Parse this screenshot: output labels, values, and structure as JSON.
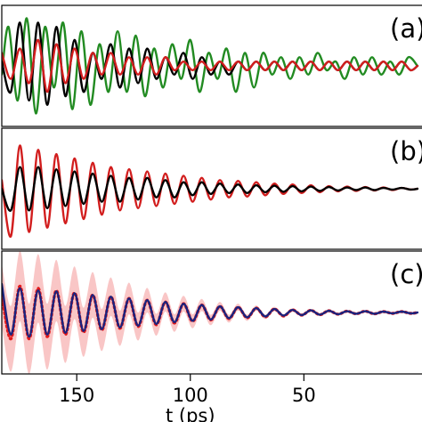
{
  "chart_data": {
    "type": "line",
    "xlabel": "t (ps)",
    "xlim": [
      183,
      -2
    ],
    "x_ticks": [
      150,
      100,
      50
    ],
    "x_tick_labels": [
      "150",
      "100",
      "50"
    ],
    "panels": [
      {
        "label": "(a)",
        "ylim": [
          -1.4,
          1.4
        ],
        "series": [
          {
            "color": "#228b22",
            "x": [
              183,
              180,
              176,
              172,
              168,
              164,
              160,
              156,
              152,
              148,
              144,
              140,
              136,
              132,
              128,
              124,
              120,
              116,
              112,
              108,
              104,
              100,
              96,
              92,
              88,
              84,
              80,
              76,
              72,
              68,
              64,
              60,
              56,
              52,
              48,
              44,
              40,
              36,
              32,
              28,
              24,
              20,
              16,
              12,
              8,
              4,
              0
            ],
            "y": [
              -0.2,
              0.9,
              -0.8,
              1.1,
              -1.1,
              0.9,
              -0.5,
              1.0,
              -1.0,
              0.8,
              -0.9,
              0.5,
              -0.6,
              0.8,
              -0.6,
              0.7,
              -0.7,
              0.4,
              -0.5,
              0.5,
              -0.3,
              0.6,
              -0.6,
              0.3,
              -0.3,
              0.4,
              -0.6,
              0.3,
              -0.5,
              0.3,
              -0.2,
              0.2,
              -0.3,
              0.2,
              -0.2,
              0.3,
              -0.1,
              0.1,
              -0.3,
              0.2,
              -0.2,
              0.2,
              -0.2,
              0.1,
              -0.2,
              0.2,
              0.0
            ]
          },
          {
            "color": "#000000",
            "x": [
              183,
              179,
              175,
              171,
              167,
              163,
              159,
              155,
              151,
              147,
              143,
              139,
              135,
              131,
              127,
              123,
              119,
              115,
              111,
              107,
              103,
              99,
              95,
              91,
              87,
              83,
              79,
              75,
              71,
              67,
              63,
              59,
              55,
              51,
              47,
              43,
              39,
              35,
              31,
              27,
              23,
              19,
              15,
              11,
              7,
              3,
              0
            ],
            "y": [
              0.1,
              -0.6,
              1.0,
              -0.8,
              1.0,
              -0.9,
              0.9,
              -0.7,
              0.6,
              -0.6,
              0.3,
              -0.3,
              0.5,
              -0.5,
              0.4,
              -0.4,
              0.4,
              -0.3,
              0.2,
              -0.2,
              0.3,
              -0.3,
              0.2,
              -0.2,
              0.1,
              -0.2,
              0.1,
              -0.1,
              0.1,
              -0.1,
              0.1,
              -0.1,
              0.1,
              -0.1,
              0.1,
              -0.1,
              0.1,
              -0.1,
              0.1,
              -0.1,
              0.1,
              -0.1,
              0.1,
              -0.1,
              0.1,
              -0.1,
              0.0
            ]
          },
          {
            "color": "#d21e1e",
            "x": [
              183,
              179,
              175,
              171,
              167,
              163,
              159,
              155,
              151,
              147,
              143,
              139,
              135,
              131,
              127,
              123,
              119,
              115,
              111,
              107,
              103,
              99,
              95,
              91,
              87,
              83,
              79,
              75,
              71,
              67,
              63,
              59,
              55,
              51,
              47,
              43,
              39,
              35,
              31,
              27,
              23,
              19,
              15,
              11,
              7,
              3,
              0
            ],
            "y": [
              0.3,
              -0.3,
              0.4,
              -0.4,
              0.6,
              -0.6,
              0.5,
              -0.4,
              0.4,
              -0.3,
              0.3,
              -0.2,
              0.3,
              -0.2,
              0.2,
              -0.2,
              0.2,
              -0.2,
              0.2,
              -0.1,
              0.1,
              -0.1,
              0.1,
              -0.1,
              0.1,
              -0.1,
              0.1,
              -0.1,
              0.1,
              -0.1,
              0.1,
              -0.1,
              0.1,
              -0.1,
              0.1,
              -0.1,
              0.1,
              -0.1,
              0.1,
              -0.1,
              0.1,
              -0.1,
              0.1,
              -0.1,
              0.1,
              -0.1,
              0.0
            ]
          }
        ]
      },
      {
        "label": "(b)",
        "ylim": [
          -1.4,
          1.4
        ],
        "series": [
          {
            "color": "#d21e1e",
            "x": [
              183,
              179,
              175,
              171,
              167,
              163,
              159,
              155,
              151,
              147,
              143,
              139,
              135,
              131,
              127,
              123,
              119,
              115,
              111,
              107,
              103,
              99,
              95,
              91,
              87,
              83,
              79,
              75,
              71,
              67,
              63,
              59,
              55,
              51,
              47,
              43,
              39,
              35,
              31,
              27,
              23,
              19,
              15,
              11,
              7,
              3,
              0
            ],
            "y": [
              0.2,
              -1.1,
              1.0,
              -1.0,
              0.9,
              -0.9,
              0.8,
              -0.8,
              0.7,
              -0.7,
              0.6,
              -0.6,
              0.5,
              -0.5,
              0.45,
              -0.45,
              0.4,
              -0.4,
              0.35,
              -0.35,
              0.3,
              -0.3,
              0.25,
              -0.25,
              0.2,
              -0.2,
              0.18,
              -0.18,
              0.15,
              -0.15,
              0.12,
              -0.12,
              0.1,
              -0.1,
              0.08,
              -0.08,
              0.06,
              -0.06,
              0.05,
              -0.05,
              0.04,
              -0.04,
              0.03,
              -0.03,
              0.02,
              -0.02,
              0.0
            ]
          },
          {
            "color": "#000000",
            "x": [
              183,
              179,
              175,
              171,
              167,
              163,
              159,
              155,
              151,
              147,
              143,
              139,
              135,
              131,
              127,
              123,
              119,
              115,
              111,
              107,
              103,
              99,
              95,
              91,
              87,
              83,
              79,
              75,
              71,
              67,
              63,
              59,
              55,
              51,
              47,
              43,
              39,
              35,
              31,
              27,
              23,
              19,
              15,
              11,
              7,
              3,
              0
            ],
            "y": [
              0.0,
              -0.5,
              0.5,
              -0.5,
              0.5,
              -0.45,
              0.45,
              -0.4,
              0.4,
              -0.35,
              0.35,
              -0.3,
              0.3,
              -0.3,
              0.25,
              -0.25,
              0.25,
              -0.2,
              0.2,
              -0.2,
              0.15,
              -0.15,
              0.15,
              -0.12,
              0.12,
              -0.1,
              0.1,
              -0.1,
              0.08,
              -0.08,
              0.07,
              -0.07,
              0.06,
              -0.06,
              0.05,
              -0.05,
              0.04,
              -0.04,
              0.03,
              -0.03,
              0.03,
              -0.03,
              0.02,
              -0.02,
              0.02,
              -0.02,
              0.0
            ]
          }
        ]
      },
      {
        "label": "(c)",
        "ylim": [
          -1.4,
          1.4
        ],
        "band": {
          "color": "#f5a0a0",
          "x": [
            183,
            179,
            175,
            171,
            167,
            163,
            159,
            155,
            151,
            147,
            143,
            139,
            135,
            131,
            127,
            123,
            119,
            115,
            111,
            107,
            103,
            99,
            95,
            91,
            87,
            83,
            79,
            75,
            71,
            67,
            63,
            59,
            55,
            51,
            47,
            43,
            39,
            35,
            31,
            27,
            23,
            19,
            15,
            11,
            7,
            3,
            0
          ],
          "center": [
            0.4,
            -0.6,
            0.6,
            -0.6,
            0.55,
            -0.55,
            0.5,
            -0.5,
            0.45,
            -0.45,
            0.4,
            -0.4,
            0.36,
            -0.36,
            0.32,
            -0.32,
            0.28,
            -0.28,
            0.24,
            -0.24,
            0.2,
            -0.2,
            0.17,
            -0.17,
            0.14,
            -0.14,
            0.12,
            -0.12,
            0.1,
            -0.1,
            0.08,
            -0.08,
            0.06,
            -0.06,
            0.05,
            -0.05,
            0.04,
            -0.04,
            0.03,
            -0.03,
            0.03,
            -0.03,
            0.02,
            -0.02,
            0.02,
            -0.02,
            0.0
          ],
          "halfwidth": [
            0.7,
            0.75,
            0.8,
            0.8,
            0.78,
            0.75,
            0.7,
            0.65,
            0.6,
            0.56,
            0.52,
            0.48,
            0.44,
            0.4,
            0.36,
            0.32,
            0.28,
            0.25,
            0.22,
            0.2,
            0.18,
            0.16,
            0.14,
            0.12,
            0.1,
            0.09,
            0.08,
            0.07,
            0.06,
            0.05,
            0.05,
            0.04,
            0.04,
            0.03,
            0.03,
            0.03,
            0.03,
            0.02,
            0.02,
            0.02,
            0.02,
            0.02,
            0.02,
            0.02,
            0.02,
            0.02,
            0.02
          ]
        },
        "series": [
          {
            "color": "#e31a1c",
            "dotted": true,
            "x": [
              183,
              179,
              175,
              171,
              167,
              163,
              159,
              155,
              151,
              147,
              143,
              139,
              135,
              131,
              127,
              123,
              119,
              115,
              111,
              107,
              103,
              99,
              95,
              91,
              87,
              83,
              79,
              75,
              71,
              67,
              63,
              59,
              55,
              51,
              47,
              43,
              39,
              35,
              31,
              27,
              23,
              19,
              15,
              11,
              7,
              3,
              0
            ],
            "y": [
              0.4,
              -0.6,
              0.6,
              -0.6,
              0.55,
              -0.55,
              0.5,
              -0.5,
              0.45,
              -0.45,
              0.4,
              -0.4,
              0.36,
              -0.36,
              0.32,
              -0.32,
              0.28,
              -0.28,
              0.24,
              -0.24,
              0.2,
              -0.2,
              0.17,
              -0.17,
              0.14,
              -0.14,
              0.12,
              -0.12,
              0.1,
              -0.1,
              0.08,
              -0.08,
              0.06,
              -0.06,
              0.05,
              -0.05,
              0.04,
              -0.04,
              0.03,
              -0.03,
              0.03,
              -0.03,
              0.02,
              -0.02,
              0.02,
              -0.02,
              0.0
            ]
          },
          {
            "color": "#1a237e",
            "x": [
              183,
              179,
              175,
              171,
              167,
              163,
              159,
              155,
              151,
              147,
              143,
              139,
              135,
              131,
              127,
              123,
              119,
              115,
              111,
              107,
              103,
              99,
              95,
              91,
              87,
              83,
              79,
              75,
              71,
              67,
              63,
              59,
              55,
              51,
              47,
              43,
              39,
              35,
              31,
              27,
              23,
              19,
              15,
              11,
              7,
              3,
              0
            ],
            "y": [
              0.65,
              -0.5,
              0.55,
              -0.55,
              0.5,
              -0.5,
              0.48,
              -0.46,
              0.44,
              -0.42,
              0.4,
              -0.38,
              0.36,
              -0.34,
              0.32,
              -0.3,
              0.28,
              -0.26,
              0.24,
              -0.22,
              0.2,
              -0.19,
              0.17,
              -0.16,
              0.14,
              -0.13,
              0.12,
              -0.11,
              0.1,
              -0.09,
              0.08,
              -0.07,
              0.06,
              -0.06,
              0.05,
              -0.05,
              0.04,
              -0.04,
              0.03,
              -0.03,
              0.03,
              -0.03,
              0.02,
              -0.02,
              0.02,
              -0.02,
              0.0
            ]
          }
        ]
      }
    ]
  }
}
